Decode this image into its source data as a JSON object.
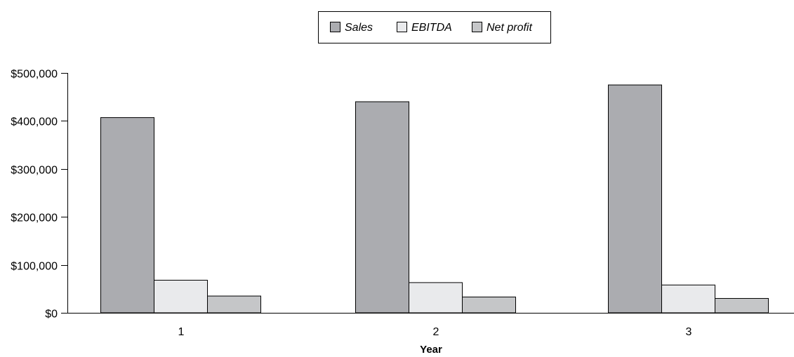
{
  "chart_data": {
    "type": "bar",
    "title": "",
    "xlabel": "Year",
    "ylabel": "",
    "categories": [
      "1",
      "2",
      "3"
    ],
    "series": [
      {
        "name": "Sales",
        "values": [
          407000,
          440000,
          475000
        ],
        "color": "#abacb0"
      },
      {
        "name": "EBITDA",
        "values": [
          68000,
          63000,
          58000
        ],
        "color": "#e9eaec"
      },
      {
        "name": "Net profit",
        "values": [
          35000,
          33000,
          30000
        ],
        "color": "#c5c6c8"
      }
    ],
    "ylim": [
      0,
      500000
    ],
    "yticks": [
      0,
      100000,
      200000,
      300000,
      400000,
      500000
    ],
    "ytick_labels": [
      "$0",
      "$100,000",
      "$200,000",
      "$300,000",
      "$400,000",
      "$500,000"
    ],
    "grid": false,
    "legend_position": "top-center"
  }
}
